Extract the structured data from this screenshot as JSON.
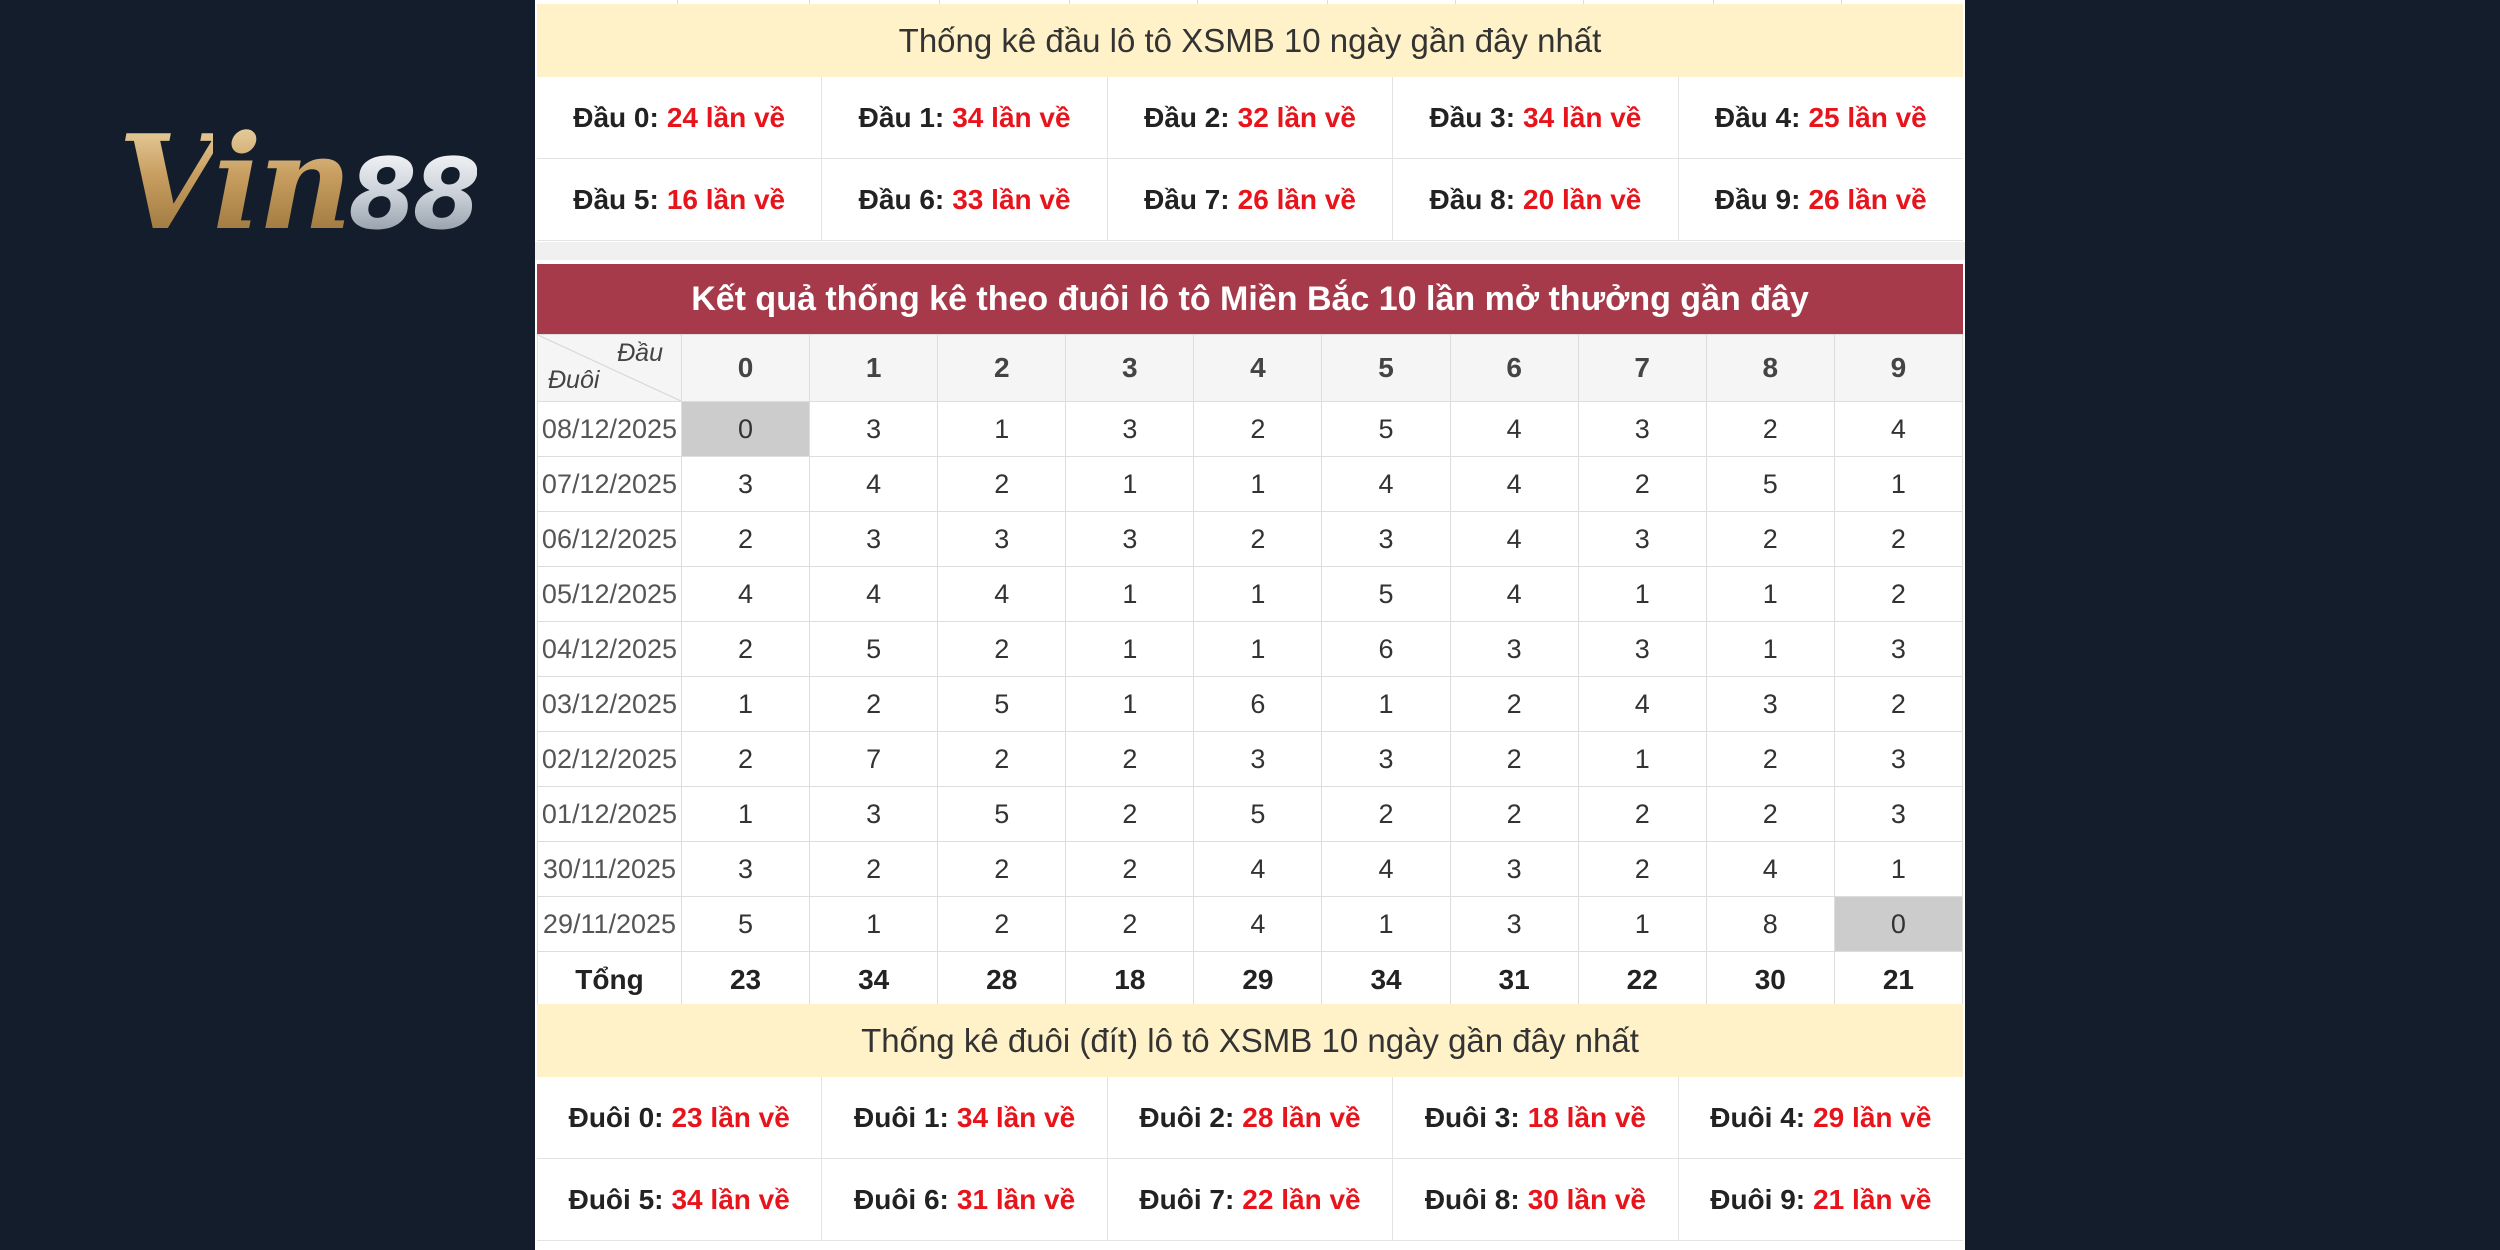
{
  "logo": {
    "v": "V",
    "in": "in",
    "n88": "88"
  },
  "top_table": {
    "title": "Thống kê đầu lô tô XSMB 10 ngày gần đây nhất",
    "row1": [
      {
        "label": "Đầu 0:",
        "value": "24 lần về"
      },
      {
        "label": "Đầu 1:",
        "value": "34 lần về"
      },
      {
        "label": "Đầu 2:",
        "value": "32 lần về"
      },
      {
        "label": "Đầu 3:",
        "value": "34 lần về"
      },
      {
        "label": "Đầu 4:",
        "value": "25 lần về"
      }
    ],
    "row2": [
      {
        "label": "Đầu 5:",
        "value": "16 lần về"
      },
      {
        "label": "Đầu 6:",
        "value": "33 lần về"
      },
      {
        "label": "Đầu 7:",
        "value": "26 lần về"
      },
      {
        "label": "Đầu 8:",
        "value": "20 lần về"
      },
      {
        "label": "Đầu 9:",
        "value": "26 lần về"
      }
    ]
  },
  "main_table": {
    "title": "Kết quả thống kê theo đuôi lô tô Miền Bắc 10 lần mở thưởng gần đây",
    "corner_top": "Đầu",
    "corner_bottom": "Đuôi",
    "headers": [
      "0",
      "1",
      "2",
      "3",
      "4",
      "5",
      "6",
      "7",
      "8",
      "9"
    ],
    "rows": [
      {
        "date": "08/12/2025",
        "values": [
          "0",
          "3",
          "1",
          "3",
          "2",
          "5",
          "4",
          "3",
          "2",
          "4"
        ]
      },
      {
        "date": "07/12/2025",
        "values": [
          "3",
          "4",
          "2",
          "1",
          "1",
          "4",
          "4",
          "2",
          "5",
          "1"
        ]
      },
      {
        "date": "06/12/2025",
        "values": [
          "2",
          "3",
          "3",
          "3",
          "2",
          "3",
          "4",
          "3",
          "2",
          "2"
        ]
      },
      {
        "date": "05/12/2025",
        "values": [
          "4",
          "4",
          "4",
          "1",
          "1",
          "5",
          "4",
          "1",
          "1",
          "2"
        ]
      },
      {
        "date": "04/12/2025",
        "values": [
          "2",
          "5",
          "2",
          "1",
          "1",
          "6",
          "3",
          "3",
          "1",
          "3"
        ]
      },
      {
        "date": "03/12/2025",
        "values": [
          "1",
          "2",
          "5",
          "1",
          "6",
          "1",
          "2",
          "4",
          "3",
          "2"
        ]
      },
      {
        "date": "02/12/2025",
        "values": [
          "2",
          "7",
          "2",
          "2",
          "3",
          "3",
          "2",
          "1",
          "2",
          "3"
        ]
      },
      {
        "date": "01/12/2025",
        "values": [
          "1",
          "3",
          "5",
          "2",
          "5",
          "2",
          "2",
          "2",
          "2",
          "3"
        ]
      },
      {
        "date": "30/11/2025",
        "values": [
          "3",
          "2",
          "2",
          "2",
          "4",
          "4",
          "3",
          "2",
          "4",
          "1"
        ]
      },
      {
        "date": "29/11/2025",
        "values": [
          "5",
          "1",
          "2",
          "2",
          "4",
          "1",
          "3",
          "1",
          "8",
          "0"
        ]
      }
    ],
    "total_label": "Tổng",
    "totals": [
      "23",
      "34",
      "28",
      "18",
      "29",
      "34",
      "31",
      "22",
      "30",
      "21"
    ],
    "highlight_color": "#cccccc"
  },
  "bottom_table": {
    "title": "Thống kê đuôi (đít) lô tô XSMB 10 ngày gần đây nhất",
    "row1": [
      {
        "label": "Đuôi 0:",
        "value": "23 lần về"
      },
      {
        "label": "Đuôi 1:",
        "value": "34 lần về"
      },
      {
        "label": "Đuôi 2:",
        "value": "28 lần về"
      },
      {
        "label": "Đuôi 3:",
        "value": "18 lần về"
      },
      {
        "label": "Đuôi 4:",
        "value": "29 lần về"
      }
    ],
    "row2": [
      {
        "label": "Đuôi 5:",
        "value": "34 lần về"
      },
      {
        "label": "Đuôi 6:",
        "value": "31 lần về"
      },
      {
        "label": "Đuôi 7:",
        "value": "22 lần về"
      },
      {
        "label": "Đuôi 8:",
        "value": "30 lần về"
      },
      {
        "label": "Đuôi 9:",
        "value": "21 lần về"
      }
    ]
  },
  "colors": {
    "accent_red": "#e8141b",
    "header_band": "#a63a4a",
    "title_band": "#fff2c8",
    "background": "#141d2b"
  }
}
